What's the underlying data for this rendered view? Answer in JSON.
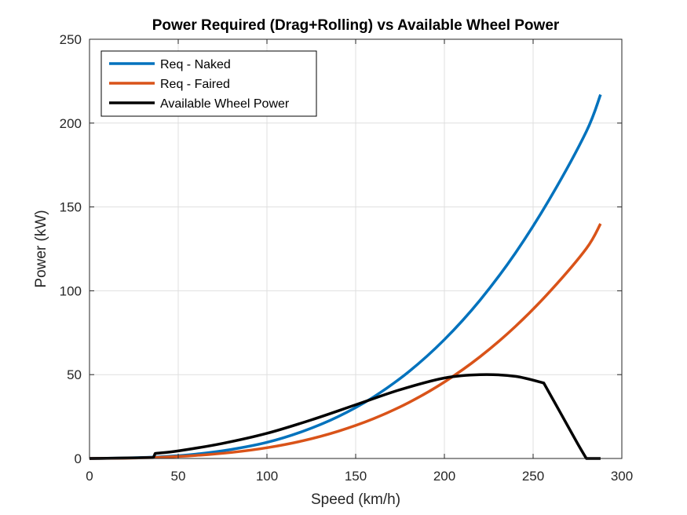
{
  "chart_data": {
    "type": "line",
    "title": "Power Required (Drag+Rolling) vs Available Wheel Power",
    "xlabel": "Speed (km/h)",
    "ylabel": "Power (kW)",
    "xlim": [
      0,
      300
    ],
    "ylim": [
      0,
      250
    ],
    "xticks": [
      0,
      50,
      100,
      150,
      200,
      250,
      300
    ],
    "yticks": [
      0,
      50,
      100,
      150,
      200,
      250
    ],
    "grid": true,
    "legend_position": "top-left",
    "series": [
      {
        "name": "Req - Naked",
        "color": "#0072BD",
        "x": [
          0,
          20,
          40,
          60,
          80,
          100,
          120,
          140,
          160,
          180,
          200,
          220,
          240,
          260,
          280,
          288
        ],
        "y": [
          0,
          0.3,
          1.0,
          2.6,
          5.4,
          9.6,
          16.1,
          24.9,
          36.6,
          51.8,
          70.9,
          94.3,
          122.5,
          156.0,
          195.0,
          217
        ]
      },
      {
        "name": "Req - Faired",
        "color": "#D95319",
        "x": [
          0,
          20,
          40,
          60,
          80,
          100,
          120,
          140,
          160,
          180,
          200,
          220,
          240,
          260,
          280,
          288
        ],
        "y": [
          0,
          0.2,
          0.7,
          1.8,
          3.6,
          6.4,
          10.5,
          16.2,
          23.7,
          33.4,
          45.6,
          60.6,
          78.7,
          100.2,
          125.2,
          140
        ]
      },
      {
        "name": "Available Wheel Power",
        "color": "#000000",
        "x": [
          0,
          36,
          37,
          50,
          75,
          100,
          125,
          150,
          175,
          200,
          220,
          240,
          256,
          265,
          275,
          280,
          288
        ],
        "y": [
          0,
          0.5,
          3,
          4.5,
          9,
          15,
          23,
          32,
          41,
          48,
          50,
          49,
          45,
          28,
          9,
          0,
          0
        ]
      }
    ]
  }
}
